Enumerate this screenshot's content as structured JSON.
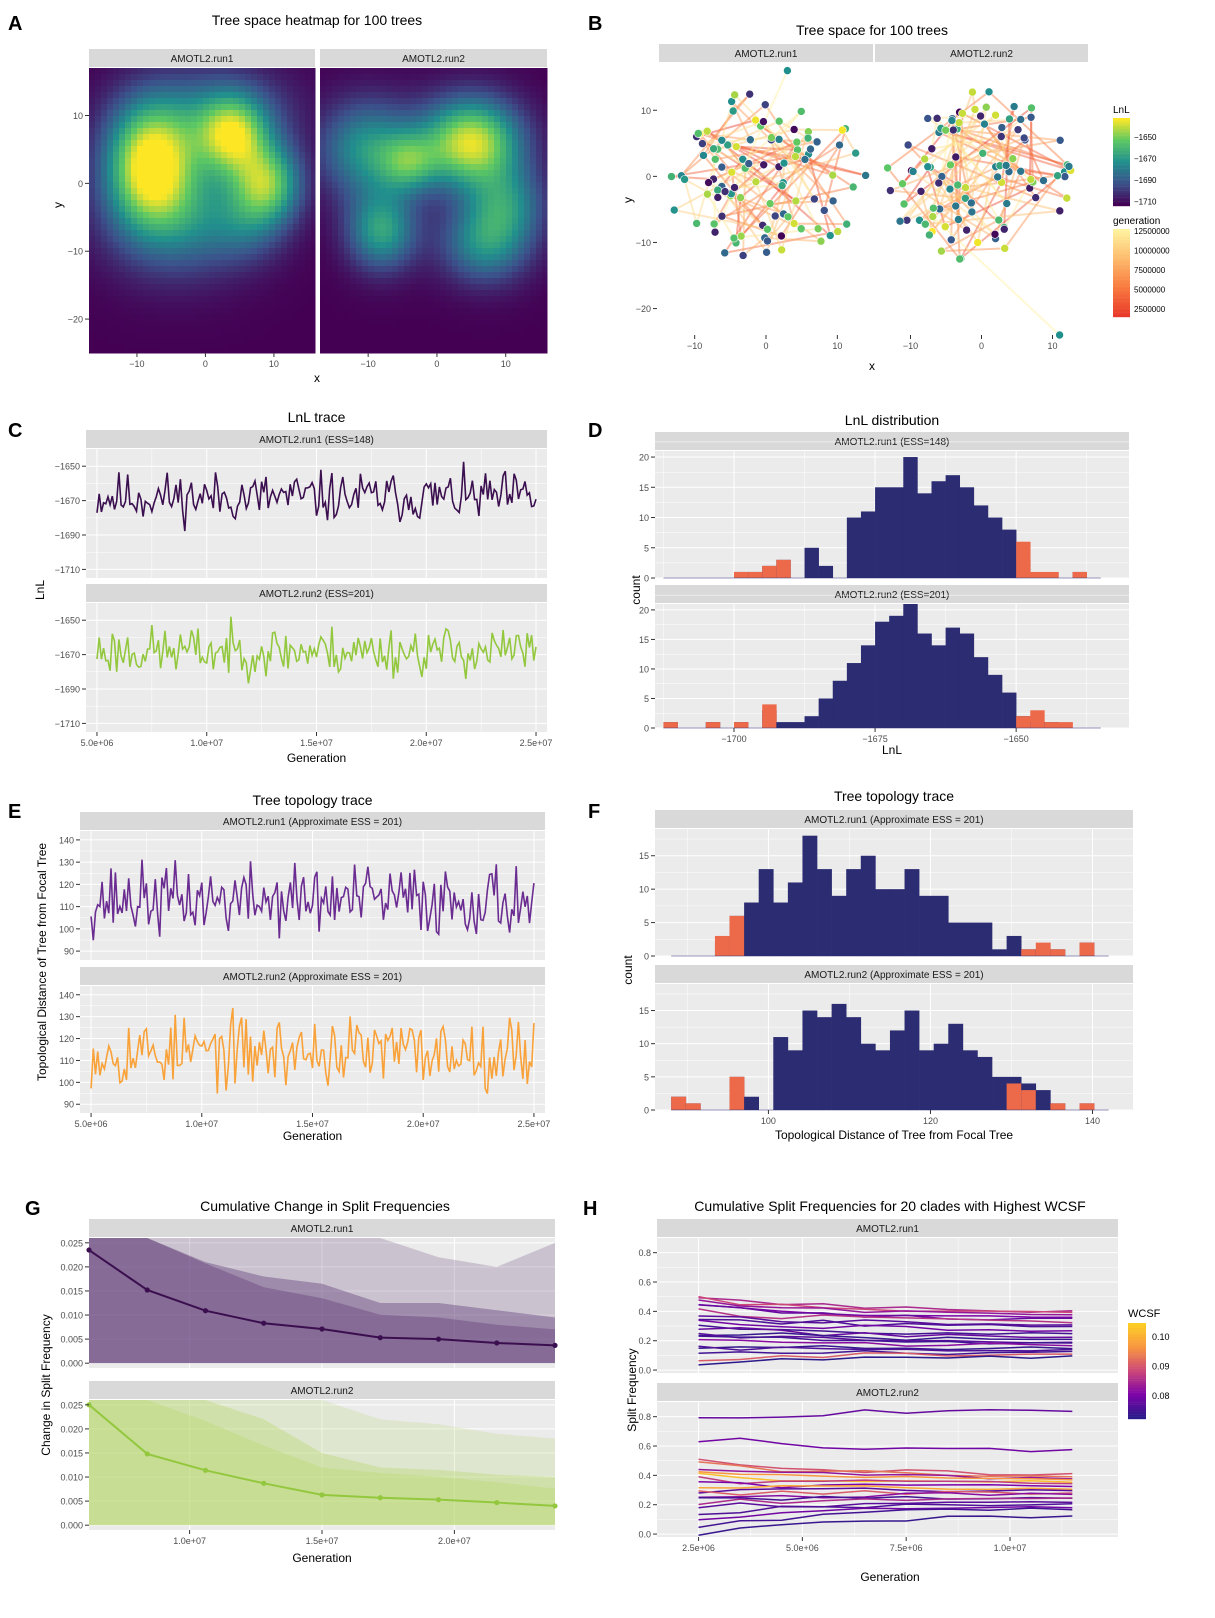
{
  "panel_letters": [
    "A",
    "B",
    "C",
    "D",
    "E",
    "F",
    "G",
    "H"
  ],
  "chart_data": [
    {
      "id": "A",
      "type": "heatmap",
      "title": "Tree space heatmap for 100 trees",
      "xlabel": "x",
      "ylabel": "y",
      "facets": [
        "AMOTL2.run1",
        "AMOTL2.run2"
      ],
      "xlim": [
        -17,
        16
      ],
      "ylim": [
        -25,
        17
      ],
      "x_ticks": [
        -10,
        0,
        10
      ],
      "y_ticks": [
        -20,
        -10,
        0,
        10
      ],
      "colormap": [
        "#440154",
        "#3b528b",
        "#21908d",
        "#5dc863",
        "#fde725"
      ],
      "runs": [
        {
          "name": "AMOTL2.run1",
          "blobs": [
            {
              "x": -8,
              "y": 3,
              "sx": 4.5,
              "sy": 6,
              "w": 1.0
            },
            {
              "x": 4,
              "y": 7,
              "sx": 3.5,
              "sy": 4,
              "w": 0.75
            },
            {
              "x": 9,
              "y": 0,
              "sx": 3.5,
              "sy": 4,
              "w": 0.75
            },
            {
              "x": -4,
              "y": -5,
              "sx": 7,
              "sy": 6,
              "w": 0.45
            },
            {
              "x": 1,
              "y": 10,
              "sx": 8,
              "sy": 5,
              "w": 0.35
            },
            {
              "x": 6,
              "y": -6,
              "sx": 4,
              "sy": 4,
              "w": 0.25
            }
          ]
        },
        {
          "name": "AMOTL2.run2",
          "blobs": [
            {
              "x": 5,
              "y": 6,
              "sx": 5,
              "sy": 4.5,
              "w": 1.0
            },
            {
              "x": -10,
              "y": 5,
              "sx": 5,
              "sy": 5,
              "w": 0.55
            },
            {
              "x": -8,
              "y": -7,
              "sx": 3.5,
              "sy": 4,
              "w": 0.6
            },
            {
              "x": -4,
              "y": 3,
              "sx": 3,
              "sy": 3,
              "w": 0.45
            },
            {
              "x": 7,
              "y": -9,
              "sx": 4.5,
              "sy": 4,
              "w": 0.5
            },
            {
              "x": 10,
              "y": -3,
              "sx": 4,
              "sy": 4,
              "w": 0.45
            }
          ]
        }
      ]
    },
    {
      "id": "B",
      "type": "scatter",
      "title": "Tree space for 100 trees",
      "xlabel": "x",
      "ylabel": "y",
      "facets": [
        "AMOTL2.run1",
        "AMOTL2.run2"
      ],
      "xlim": [
        -15,
        15
      ],
      "ylim": [
        -24,
        17
      ],
      "x_ticks": [
        -10,
        0,
        10
      ],
      "y_ticks": [
        -20,
        -10,
        0,
        10
      ],
      "legend_lnl": {
        "title": "LnL",
        "ticks": [
          "-1650",
          "-1670",
          "-1690",
          "-1710"
        ],
        "colors": [
          "#fde725",
          "#5dc863",
          "#21908d",
          "#3b528b",
          "#440154"
        ]
      },
      "legend_generation": {
        "title": "generation",
        "ticks": [
          "12500000",
          "10000000",
          "7500000",
          "5000000",
          "2500000"
        ],
        "colors": [
          "#fff3a0",
          "#fdbb6c",
          "#f97a3f",
          "#e83a2a"
        ]
      },
      "runs": [
        {
          "name": "AMOTL2.run1",
          "points": 100,
          "spread_x": [
            -14,
            14
          ],
          "spread_y": [
            -15,
            16
          ]
        },
        {
          "name": "AMOTL2.run2",
          "points": 100,
          "spread_x": [
            -13,
            14
          ],
          "spread_y": [
            -25,
            15
          ]
        }
      ],
      "note_lnl": [
        -1710,
        -1640
      ]
    },
    {
      "id": "C",
      "type": "line",
      "title": "LnL trace",
      "xlabel": "Generation",
      "ylabel": "LnL",
      "x_ticks": [
        "5.0e+06",
        "1.0e+07",
        "1.5e+07",
        "2.0e+07",
        "2.5e+07"
      ],
      "xlim": [
        4500000,
        25500000
      ],
      "y_ticks": [
        -1650,
        -1670,
        -1690,
        -1710
      ],
      "ylim": [
        -1715,
        -1640
      ],
      "series": [
        {
          "name": "AMOTL2.run1 (ESS=148)",
          "color": "#3b0f4f",
          "mean": -1668,
          "sd": 9,
          "seed": 11
        },
        {
          "name": "AMOTL2.run2 (ESS=201)",
          "color": "#93c83e",
          "mean": -1668,
          "sd": 9,
          "seed": 23
        }
      ]
    },
    {
      "id": "D",
      "type": "bar",
      "title": "LnL distribution",
      "xlabel": "LnL",
      "ylabel": "count",
      "x_ticks": [
        -1700,
        -1675,
        -1650
      ],
      "xlim": [
        -1714,
        -1630
      ],
      "y_ticks": [
        0,
        5,
        10,
        15,
        20
      ],
      "ylim": [
        0,
        21
      ],
      "bin_start": -1712.5,
      "bin_width": 2.5,
      "series": [
        {
          "name": "AMOTL2.run1 (ESS=148)",
          "values": [
            0,
            0,
            0,
            0,
            0,
            1,
            1,
            2,
            3,
            0,
            5,
            2,
            0,
            10,
            11,
            15,
            15,
            20,
            14,
            16,
            17,
            15,
            12,
            10,
            8,
            3,
            0,
            0,
            0,
            1,
            0
          ],
          "highlight": [
            0,
            0,
            0,
            0,
            0,
            1,
            1,
            2,
            3,
            0,
            0,
            0,
            0,
            0,
            0,
            0,
            0,
            0,
            0,
            0,
            0,
            0,
            0,
            0,
            0,
            6,
            1,
            1,
            0,
            1,
            0
          ]
        },
        {
          "name": "AMOTL2.run2 (ESS=201)",
          "values": [
            1,
            0,
            0,
            1,
            0,
            1,
            0,
            3,
            1,
            1,
            2,
            5,
            8,
            11,
            14,
            18,
            19,
            21,
            16,
            14,
            17,
            16,
            12,
            9,
            6,
            2,
            1,
            1,
            0,
            0,
            0
          ],
          "highlight": [
            1,
            0,
            0,
            1,
            0,
            1,
            0,
            4,
            0,
            0,
            0,
            0,
            0,
            0,
            0,
            0,
            0,
            0,
            0,
            0,
            0,
            0,
            0,
            0,
            0,
            2,
            3,
            1,
            1,
            0,
            0
          ]
        }
      ]
    },
    {
      "id": "E",
      "type": "line",
      "title": "Tree topology trace",
      "xlabel": "Generation",
      "ylabel": "Topological Distance of Tree from Focal Tree",
      "x_ticks": [
        "5.0e+06",
        "1.0e+07",
        "1.5e+07",
        "2.0e+07",
        "2.5e+07"
      ],
      "xlim": [
        4500000,
        25500000
      ],
      "y_ticks": [
        90,
        100,
        110,
        120,
        130,
        140
      ],
      "ylim": [
        86,
        144
      ],
      "series": [
        {
          "name": "AMOTL2.run1 (Approximate ESS = 201)",
          "color": "#6a2c91",
          "mean": 113,
          "sd": 10,
          "seed": 37
        },
        {
          "name": "AMOTL2.run2 (Approximate ESS = 201)",
          "color": "#f9a23a",
          "mean": 114,
          "sd": 10,
          "seed": 53
        }
      ]
    },
    {
      "id": "F",
      "type": "bar",
      "title": "Tree topology trace",
      "xlabel": "Topological Distance of Tree from Focal Tree",
      "ylabel": "count",
      "x_ticks": [
        100,
        120,
        140
      ],
      "xlim": [
        86,
        145
      ],
      "y_ticks": [
        0,
        5,
        10,
        15
      ],
      "ylim": [
        0,
        19
      ],
      "bin_start": 88,
      "bin_width": 1.8,
      "series": [
        {
          "name": "AMOTL2.run1 (Approximate ESS = 201)",
          "values": [
            0,
            0,
            0,
            2,
            6,
            8,
            13,
            8,
            11,
            18,
            13,
            9,
            13,
            15,
            10,
            10,
            13,
            9,
            9,
            5,
            5,
            5,
            1,
            3,
            1,
            1,
            1,
            0,
            2,
            0
          ],
          "highlight": [
            0,
            0,
            0,
            3,
            6,
            0,
            0,
            0,
            0,
            0,
            0,
            0,
            0,
            0,
            0,
            0,
            0,
            0,
            0,
            0,
            0,
            0,
            0,
            0,
            1,
            2,
            1,
            0,
            2,
            0
          ]
        },
        {
          "name": "AMOTL2.run2 (Approximate ESS = 201)",
          "values": [
            2,
            1,
            0,
            0,
            5,
            2,
            0,
            11,
            9,
            15,
            14,
            16,
            14,
            10,
            9,
            12,
            15,
            9,
            10,
            13,
            9,
            8,
            5,
            5,
            4,
            3,
            1,
            0,
            1,
            0
          ],
          "highlight": [
            2,
            1,
            0,
            0,
            5,
            0,
            0,
            0,
            0,
            0,
            0,
            0,
            0,
            0,
            0,
            0,
            0,
            0,
            0,
            0,
            0,
            0,
            0,
            4,
            3,
            0,
            1,
            0,
            1,
            0
          ]
        }
      ]
    },
    {
      "id": "G",
      "type": "area",
      "title": "Cumulative Change in Split Frequencies",
      "xlabel": "Generation",
      "ylabel": "Change in Split Frequency",
      "x_ticks": [
        "1.0e+07",
        "1.5e+07",
        "2.0e+07"
      ],
      "x_tick_values": [
        10000000,
        15000000,
        20000000
      ],
      "xlim": [
        6200000,
        23800000
      ],
      "y_ticks": [
        "0.000",
        "0.005",
        "0.010",
        "0.015",
        "0.020",
        "0.025"
      ],
      "ylim": [
        -0.001,
        0.026
      ],
      "series": [
        {
          "name": "AMOTL2.run1",
          "color": "#3b0f4f",
          "band_color": "#56306f",
          "x": [
            6200000,
            8400000,
            10600000,
            12800000,
            15000000,
            17200000,
            19400000,
            21600000,
            23800000
          ],
          "y": [
            0.0235,
            0.0152,
            0.0109,
            0.0083,
            0.0071,
            0.0053,
            0.005,
            0.0042,
            0.0037
          ],
          "band_hi": [
            0.026,
            0.026,
            0.026,
            0.026,
            0.026,
            0.026,
            0.022,
            0.02,
            0.025
          ],
          "band_mid": [
            0.026,
            0.026,
            0.021,
            0.018,
            0.0165,
            0.0125,
            0.0125,
            0.011,
            0.0095
          ]
        },
        {
          "name": "AMOTL2.run2",
          "color": "#93c83e",
          "band_color": "#b8d86e",
          "x": [
            6200000,
            8400000,
            10600000,
            12800000,
            15000000,
            17200000,
            19400000,
            21600000,
            23800000
          ],
          "y": [
            0.025,
            0.0148,
            0.0114,
            0.0087,
            0.0063,
            0.0057,
            0.0053,
            0.0047,
            0.004
          ],
          "band_hi": [
            0.026,
            0.026,
            0.026,
            0.026,
            0.026,
            0.022,
            0.021,
            0.019,
            0.018
          ],
          "band_mid": [
            0.026,
            0.026,
            0.026,
            0.022,
            0.015,
            0.012,
            0.0115,
            0.0105,
            0.01
          ]
        }
      ]
    },
    {
      "id": "H",
      "type": "line",
      "title": "Cumulative Split Frequencies for 20 clades with Highest WCSF",
      "xlabel": "Generation",
      "ylabel": "Split Frequency",
      "x_ticks": [
        "2.5e+06",
        "5.0e+06",
        "7.5e+06",
        "1.0e+07"
      ],
      "x_tick_values": [
        2500000,
        5000000,
        7500000,
        10000000
      ],
      "xlim": [
        1500000,
        12600000
      ],
      "y_ticks": [
        "0.0",
        "0.2",
        "0.4",
        "0.6",
        "0.8"
      ],
      "ylim": [
        -0.02,
        0.9
      ],
      "legend": {
        "title": "WCSF",
        "ticks": [
          "0.10",
          "0.09",
          "0.08"
        ],
        "colors": [
          "#fcce25",
          "#f89540",
          "#cc4778",
          "#7e03a8",
          "#2a1a8a"
        ]
      },
      "runs": [
        {
          "name": "AMOTL2.run1",
          "starts": [
            0.5,
            0.48,
            0.46,
            0.44,
            0.42,
            0.4,
            0.38,
            0.36,
            0.34,
            0.31,
            0.28,
            0.26,
            0.24,
            0.22,
            0.2,
            0.17,
            0.14,
            0.11,
            0.08,
            0.05
          ],
          "ends": [
            0.4,
            0.39,
            0.38,
            0.36,
            0.35,
            0.33,
            0.31,
            0.3,
            0.27,
            0.25,
            0.23,
            0.21,
            0.19,
            0.18,
            0.17,
            0.15,
            0.14,
            0.12,
            0.11,
            0.09
          ],
          "wcsf": [
            0.085,
            0.088,
            0.083,
            0.081,
            0.079,
            0.086,
            0.078,
            0.077,
            0.08,
            0.076,
            0.079,
            0.075,
            0.078,
            0.076,
            0.082,
            0.075,
            0.077,
            0.076,
            0.09,
            0.074
          ]
        },
        {
          "name": "AMOTL2.run2",
          "starts": [
            0.8,
            0.65,
            0.5,
            0.48,
            0.46,
            0.44,
            0.4,
            0.37,
            0.34,
            0.32,
            0.3,
            0.28,
            0.26,
            0.25,
            0.22,
            0.18,
            0.15,
            0.12,
            0.06,
            0.01
          ],
          "ends": [
            0.84,
            0.57,
            0.41,
            0.39,
            0.38,
            0.37,
            0.36,
            0.35,
            0.33,
            0.31,
            0.3,
            0.28,
            0.27,
            0.25,
            0.24,
            0.22,
            0.2,
            0.18,
            0.17,
            0.12
          ],
          "wcsf": [
            0.079,
            0.08,
            0.089,
            0.092,
            0.083,
            0.095,
            0.1,
            0.087,
            0.081,
            0.097,
            0.078,
            0.09,
            0.082,
            0.076,
            0.085,
            0.078,
            0.077,
            0.08,
            0.076,
            0.075
          ]
        }
      ]
    }
  ]
}
